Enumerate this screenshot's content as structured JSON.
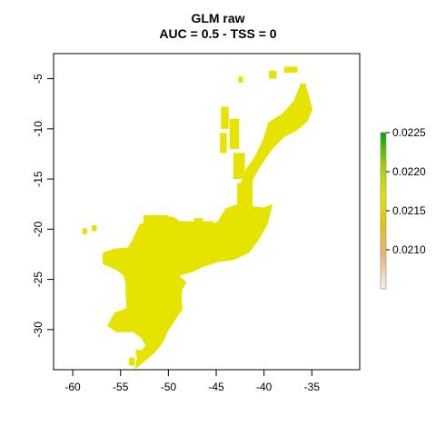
{
  "plot": {
    "title": "GLM raw",
    "subtitle": "AUC = 0.5 - TSS = 0"
  },
  "chart_data": {
    "type": "heatmap",
    "title": "GLM raw",
    "subtitle": "AUC = 0.5 - TSS = 0",
    "xlim": [
      -62,
      -30
    ],
    "ylim": [
      -34,
      -2.5
    ],
    "x_ticks": [
      -60,
      -55,
      -50,
      -45,
      -40,
      -35
    ],
    "x_tick_labels": [
      "-60",
      "-55",
      "-50",
      "-45",
      "-40",
      "-35"
    ],
    "y_ticks": [
      -5,
      -10,
      -15,
      -20,
      -25,
      -30
    ],
    "y_tick_labels": [
      "-5",
      "-10",
      "-15",
      "-20",
      "-25",
      "-30"
    ],
    "raster_value": 0.0216,
    "raster_color": "#e6e300",
    "legend": {
      "placement": "right",
      "range": [
        0.0205,
        0.0225
      ],
      "ticks": [
        0.021,
        0.0215,
        0.022,
        0.0225
      ],
      "tick_labels": [
        "0.0210",
        "0.0215",
        "0.0220",
        "0.0225"
      ],
      "colors": [
        "#f2f2f2",
        "#ecb176",
        "#e6c700",
        "#e6e300",
        "#9acf00",
        "#00a600"
      ]
    },
    "region_outline_lonlat": [
      [
        -49,
        -24.6
      ],
      [
        -48.2,
        -25.3
      ],
      [
        -48.6,
        -26.0
      ],
      [
        -48.7,
        -26.8
      ],
      [
        -48.6,
        -28.0
      ],
      [
        -49.2,
        -28.8
      ],
      [
        -50.1,
        -30.1
      ],
      [
        -50.6,
        -31.2
      ],
      [
        -51.4,
        -32.2
      ],
      [
        -52.4,
        -33.0
      ],
      [
        -53.4,
        -33.8
      ],
      [
        -53.2,
        -32.6
      ],
      [
        -52.3,
        -31.6
      ],
      [
        -52.8,
        -30.8
      ],
      [
        -53.6,
        -30.2
      ],
      [
        -55.4,
        -30.2
      ],
      [
        -56.3,
        -29.6
      ],
      [
        -55.6,
        -28.4
      ],
      [
        -54.3,
        -27.9
      ],
      [
        -54.4,
        -26.5
      ],
      [
        -54.4,
        -25.4
      ],
      [
        -54.6,
        -24.6
      ],
      [
        -55.4,
        -24.0
      ],
      [
        -56.8,
        -23.4
      ],
      [
        -56.8,
        -22.4
      ],
      [
        -55.6,
        -22.0
      ],
      [
        -54.2,
        -21.9
      ],
      [
        -53.7,
        -21.1
      ],
      [
        -53.0,
        -19.6
      ],
      [
        -51.0,
        -18.9
      ],
      [
        -49.6,
        -18.8
      ],
      [
        -48.4,
        -19.5
      ],
      [
        -47.5,
        -19.8
      ],
      [
        -46.3,
        -20.0
      ],
      [
        -44.8,
        -19.3
      ],
      [
        -44.0,
        -18.0
      ],
      [
        -42.5,
        -17.5
      ],
      [
        -41.5,
        -16.5
      ],
      [
        -41.2,
        -15.0
      ],
      [
        -40.5,
        -13.8
      ],
      [
        -39.8,
        -12.8
      ],
      [
        -39.2,
        -12.0
      ],
      [
        -38.0,
        -10.8
      ],
      [
        -36.6,
        -10.1
      ],
      [
        -35.5,
        -9.2
      ],
      [
        -35.0,
        -8.0
      ],
      [
        -35.3,
        -7.0
      ],
      [
        -35.6,
        -6.0
      ],
      [
        -36.1,
        -5.5
      ],
      [
        -36.8,
        -7.2
      ],
      [
        -38.0,
        -8.5
      ],
      [
        -39.5,
        -9.4
      ],
      [
        -40.0,
        -11.0
      ],
      [
        -40.9,
        -12.8
      ],
      [
        -41.8,
        -14.0
      ],
      [
        -42.6,
        -16.0
      ],
      [
        -41.3,
        -17.8
      ],
      [
        -40.0,
        -17.9
      ],
      [
        -39.2,
        -17.6
      ],
      [
        -39.7,
        -19.5
      ],
      [
        -40.6,
        -21.0
      ],
      [
        -41.6,
        -22.3
      ],
      [
        -43.2,
        -23.0
      ],
      [
        -44.8,
        -23.2
      ],
      [
        -46.4,
        -23.7
      ],
      [
        -47.5,
        -24.2
      ],
      [
        -49,
        -24.6
      ]
    ],
    "scattered_patches_lonlat": [
      [
        -44.5,
        -7.8,
        0.8,
        2.2
      ],
      [
        -43.6,
        -9.0,
        1.0,
        3.0
      ],
      [
        -44.6,
        -10.4,
        0.7,
        2.0
      ],
      [
        -43.2,
        -12.4,
        1.2,
        2.6
      ],
      [
        -42.8,
        -15.4,
        1.6,
        2.4
      ],
      [
        -39.5,
        -4.2,
        0.8,
        0.8
      ],
      [
        -37.9,
        -3.8,
        1.4,
        0.6
      ],
      [
        -36.2,
        -5.5,
        0.6,
        2.0
      ],
      [
        -42.7,
        -4.8,
        0.5,
        0.6
      ],
      [
        -48.8,
        -19.2,
        3.5,
        0.9
      ],
      [
        -52.6,
        -18.6,
        2.6,
        0.8
      ],
      [
        -52.4,
        -20.2,
        1.4,
        1.0
      ],
      [
        -49.1,
        -22.0,
        1.2,
        1.6
      ],
      [
        -50.8,
        -21.1,
        1.6,
        1.8
      ],
      [
        -59.0,
        -19.9,
        0.5,
        0.6
      ],
      [
        -58.0,
        -19.6,
        0.5,
        0.6
      ],
      [
        -56.7,
        -22.8,
        1.0,
        0.8
      ],
      [
        -54.1,
        -32.8,
        0.6,
        0.8
      ],
      [
        -53.4,
        -32.0,
        0.5,
        0.6
      ],
      [
        -45.3,
        -21.0,
        0.8,
        0.8
      ],
      [
        -47.3,
        -18.9,
        0.9,
        0.7
      ]
    ]
  }
}
